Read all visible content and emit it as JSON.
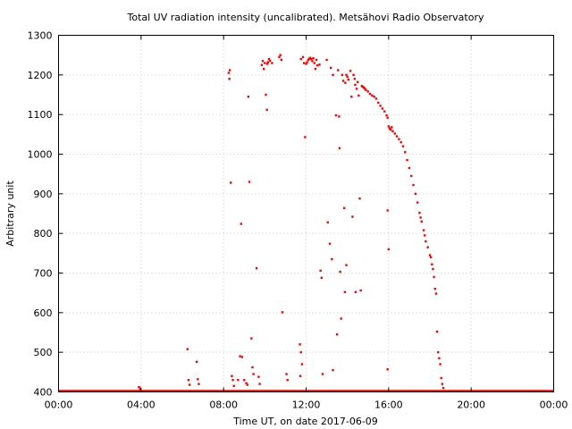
{
  "chart_data": {
    "type": "scatter",
    "title": "Total UV radiation intensity (uncalibrated). Metsähovi Radio Observatory",
    "xlabel": "Time UT, on date 2017-06-09",
    "ylabel": "Arbitrary unit",
    "xlim": [
      0,
      24
    ],
    "ylim": [
      400,
      1300
    ],
    "x_ticks": [
      0,
      4,
      8,
      12,
      16,
      20,
      24
    ],
    "x_tick_labels": [
      "00:00",
      "04:00",
      "08:00",
      "12:00",
      "16:00",
      "20:00",
      "00:00"
    ],
    "y_ticks": [
      400,
      500,
      600,
      700,
      800,
      900,
      1000,
      1100,
      1200,
      1300
    ],
    "y_tick_labels": [
      "400",
      "500",
      "600",
      "700",
      "800",
      "900",
      "1000",
      "1100",
      "1200",
      "1300"
    ],
    "grid": true,
    "color": "#ff0000",
    "baseline": {
      "value": 400,
      "from": 0,
      "to": 24
    },
    "series": [
      {
        "points": [
          [
            3.9,
            412
          ],
          [
            3.95,
            408
          ],
          [
            6.25,
            508
          ],
          [
            6.3,
            430
          ],
          [
            6.35,
            418
          ],
          [
            6.7,
            476
          ],
          [
            6.75,
            432
          ],
          [
            6.8,
            420
          ],
          [
            8.25,
            1205
          ],
          [
            8.28,
            1190
          ],
          [
            8.3,
            1212
          ],
          [
            8.35,
            928
          ],
          [
            8.4,
            440
          ],
          [
            8.45,
            430
          ],
          [
            8.5,
            415
          ],
          [
            8.85,
            824
          ],
          [
            8.8,
            490
          ],
          [
            8.9,
            488
          ],
          [
            8.7,
            430
          ],
          [
            9.0,
            430
          ],
          [
            9.1,
            422
          ],
          [
            9.15,
            418
          ],
          [
            9.2,
            1145
          ],
          [
            9.25,
            930
          ],
          [
            9.35,
            535
          ],
          [
            9.4,
            462
          ],
          [
            9.45,
            445
          ],
          [
            9.6,
            712
          ],
          [
            9.7,
            438
          ],
          [
            9.75,
            420
          ],
          [
            9.85,
            1225
          ],
          [
            9.9,
            1235
          ],
          [
            9.95,
            1215
          ],
          [
            10.0,
            1230
          ],
          [
            10.05,
            1150
          ],
          [
            10.1,
            1112
          ],
          [
            10.12,
            1228
          ],
          [
            10.15,
            1232
          ],
          [
            10.2,
            1240
          ],
          [
            10.25,
            1236
          ],
          [
            10.7,
            1245
          ],
          [
            10.75,
            1250
          ],
          [
            10.8,
            1238
          ],
          [
            10.85,
            601
          ],
          [
            11.05,
            445
          ],
          [
            11.1,
            430
          ],
          [
            11.7,
            520
          ],
          [
            11.75,
            500
          ],
          [
            11.8,
            470
          ],
          [
            11.72,
            440
          ],
          [
            11.85,
            1245
          ],
          [
            11.9,
            1230
          ],
          [
            11.95,
            1043
          ],
          [
            12.0,
            1228
          ],
          [
            12.05,
            1232
          ],
          [
            12.1,
            1238
          ],
          [
            12.15,
            1241
          ],
          [
            12.2,
            1243
          ],
          [
            12.25,
            1240
          ],
          [
            12.3,
            1235
          ],
          [
            12.35,
            1242
          ],
          [
            12.4,
            1230
          ],
          [
            12.45,
            1215
          ],
          [
            12.5,
            1238
          ],
          [
            12.55,
            1224
          ],
          [
            12.65,
            1226
          ],
          [
            12.7,
            706
          ],
          [
            12.75,
            688
          ],
          [
            12.8,
            445
          ],
          [
            13.0,
            1238
          ],
          [
            13.05,
            828
          ],
          [
            13.15,
            774
          ],
          [
            13.2,
            1218
          ],
          [
            13.25,
            735
          ],
          [
            13.3,
            455
          ],
          [
            13.45,
            1098
          ],
          [
            13.5,
            545
          ],
          [
            13.55,
            1212
          ],
          [
            13.6,
            1095
          ],
          [
            13.62,
            1015
          ],
          [
            13.65,
            703
          ],
          [
            13.7,
            585
          ],
          [
            13.75,
            1200
          ],
          [
            13.8,
            1185
          ],
          [
            13.85,
            864
          ],
          [
            13.88,
            652
          ],
          [
            13.9,
            1180
          ],
          [
            13.95,
            1200
          ],
          [
            14.0,
            1195
          ],
          [
            14.05,
            1188
          ],
          [
            14.15,
            1210
          ],
          [
            14.2,
            1145
          ],
          [
            14.25,
            842
          ],
          [
            14.3,
            1200
          ],
          [
            14.35,
            1190
          ],
          [
            14.38,
            1175
          ],
          [
            14.4,
            652
          ],
          [
            14.45,
            1165
          ],
          [
            14.55,
            1148
          ],
          [
            14.6,
            888
          ],
          [
            14.65,
            656
          ],
          [
            14.7,
            1172
          ],
          [
            14.75,
            1170
          ],
          [
            14.8,
            1168
          ],
          [
            14.85,
            1165
          ],
          [
            14.9,
            1162
          ],
          [
            15.0,
            1158
          ],
          [
            15.1,
            1152
          ],
          [
            15.2,
            1148
          ],
          [
            15.3,
            1145
          ],
          [
            15.4,
            1140
          ],
          [
            15.5,
            1130
          ],
          [
            15.6,
            1122
          ],
          [
            15.7,
            1115
          ],
          [
            15.8,
            1108
          ],
          [
            15.9,
            1098
          ],
          [
            15.95,
            1092
          ],
          [
            16.0,
            1070
          ],
          [
            16.05,
            1065
          ],
          [
            16.1,
            1062
          ],
          [
            16.15,
            1068
          ],
          [
            16.2,
            1058
          ],
          [
            16.3,
            1052
          ],
          [
            16.4,
            1045
          ],
          [
            16.5,
            1038
          ],
          [
            16.6,
            1030
          ],
          [
            16.7,
            1020
          ],
          [
            16.8,
            1005
          ],
          [
            16.9,
            985
          ],
          [
            17.0,
            965
          ],
          [
            17.1,
            945
          ],
          [
            17.2,
            922
          ],
          [
            17.3,
            900
          ],
          [
            17.4,
            878
          ],
          [
            17.5,
            852
          ],
          [
            17.55,
            840
          ],
          [
            17.6,
            830
          ],
          [
            17.7,
            808
          ],
          [
            17.75,
            795
          ],
          [
            17.8,
            780
          ],
          [
            17.9,
            765
          ],
          [
            18.0,
            745
          ],
          [
            18.05,
            740
          ],
          [
            18.1,
            722
          ],
          [
            18.15,
            710
          ],
          [
            18.2,
            690
          ],
          [
            18.25,
            660
          ],
          [
            18.3,
            648
          ],
          [
            18.35,
            552
          ],
          [
            18.4,
            500
          ],
          [
            18.45,
            485
          ],
          [
            18.5,
            470
          ],
          [
            18.55,
            435
          ],
          [
            18.6,
            420
          ],
          [
            18.65,
            410
          ],
          [
            15.95,
            858
          ],
          [
            16.0,
            760
          ],
          [
            15.95,
            457
          ],
          [
            11.75,
            1240
          ],
          [
            10.35,
            1230
          ],
          [
            14.5,
            1182
          ],
          [
            13.95,
            720
          ],
          [
            13.3,
            1200
          ]
        ]
      }
    ]
  }
}
